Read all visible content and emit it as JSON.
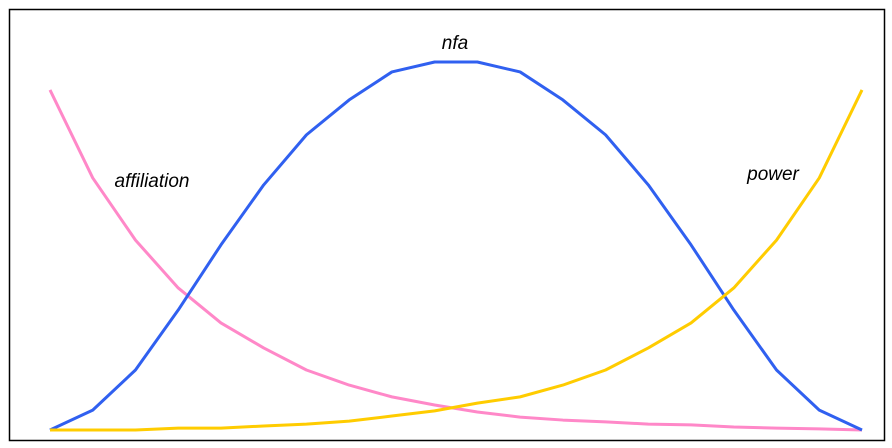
{
  "chart_data": {
    "type": "line",
    "series": [
      {
        "name": "affiliation",
        "color": "#ff88c8",
        "values": [
          92.4,
          68.5,
          51.6,
          38.6,
          29.1,
          22.3,
          16.3,
          12.2,
          9.0,
          6.8,
          4.9,
          3.5,
          2.7,
          2.2,
          1.6,
          1.4,
          0.8,
          0.5,
          0.3,
          0
        ]
      },
      {
        "name": "nfa",
        "color": "#3060f0",
        "values": [
          0,
          5.4,
          16.3,
          32.6,
          50.3,
          66.6,
          80.2,
          89.7,
          97.3,
          100,
          100,
          97.3,
          89.7,
          80.2,
          66.6,
          50.3,
          32.6,
          16.3,
          5.4,
          0
        ]
      },
      {
        "name": "power",
        "color": "#ffcc00",
        "values": [
          0,
          0,
          0,
          0.5,
          0.5,
          1.1,
          1.6,
          2.4,
          3.8,
          5.2,
          7.3,
          9.0,
          12.2,
          16.3,
          22.3,
          29.1,
          38.6,
          51.6,
          68.5,
          92.4
        ]
      }
    ],
    "ylim": [
      0,
      100
    ]
  }
}
